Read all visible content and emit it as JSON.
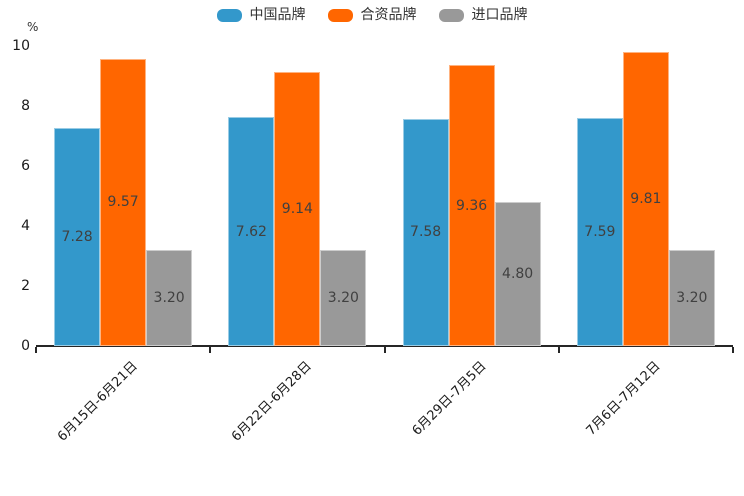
{
  "chart": {
    "unit_label": "%",
    "legend_items": [
      {
        "label": "中国品牌",
        "color": "#3398cb"
      },
      {
        "label": "合资品牌",
        "color": "#ff6600"
      },
      {
        "label": "进口品牌",
        "color": "#999999"
      }
    ]
  },
  "chart_data": {
    "type": "bar",
    "title": "",
    "xlabel": "",
    "ylabel": "%",
    "ylim": [
      0,
      10
    ],
    "yticks": [
      0,
      2,
      4,
      6,
      8,
      10
    ],
    "grid": false,
    "legend_position": "top",
    "categories": [
      "6月15日-6月21日",
      "6月22日-6月28日",
      "6月29日-7月5日",
      "7月6日-7月12日"
    ],
    "series": [
      {
        "name": "中国品牌",
        "color": "#3398cb",
        "values": [
          7.28,
          7.62,
          7.58,
          7.59
        ],
        "labels": [
          "7.28",
          "7.62",
          "7.58",
          "7.59"
        ]
      },
      {
        "name": "合资品牌",
        "color": "#ff6600",
        "values": [
          9.57,
          9.14,
          9.36,
          9.81
        ],
        "labels": [
          "9.57",
          "9.14",
          "9.36",
          "9.81"
        ]
      },
      {
        "name": "进口品牌",
        "color": "#999999",
        "values": [
          3.2,
          3.2,
          4.8,
          3.2
        ],
        "labels": [
          "3.20",
          "3.20",
          "4.80",
          "3.20"
        ]
      }
    ]
  }
}
